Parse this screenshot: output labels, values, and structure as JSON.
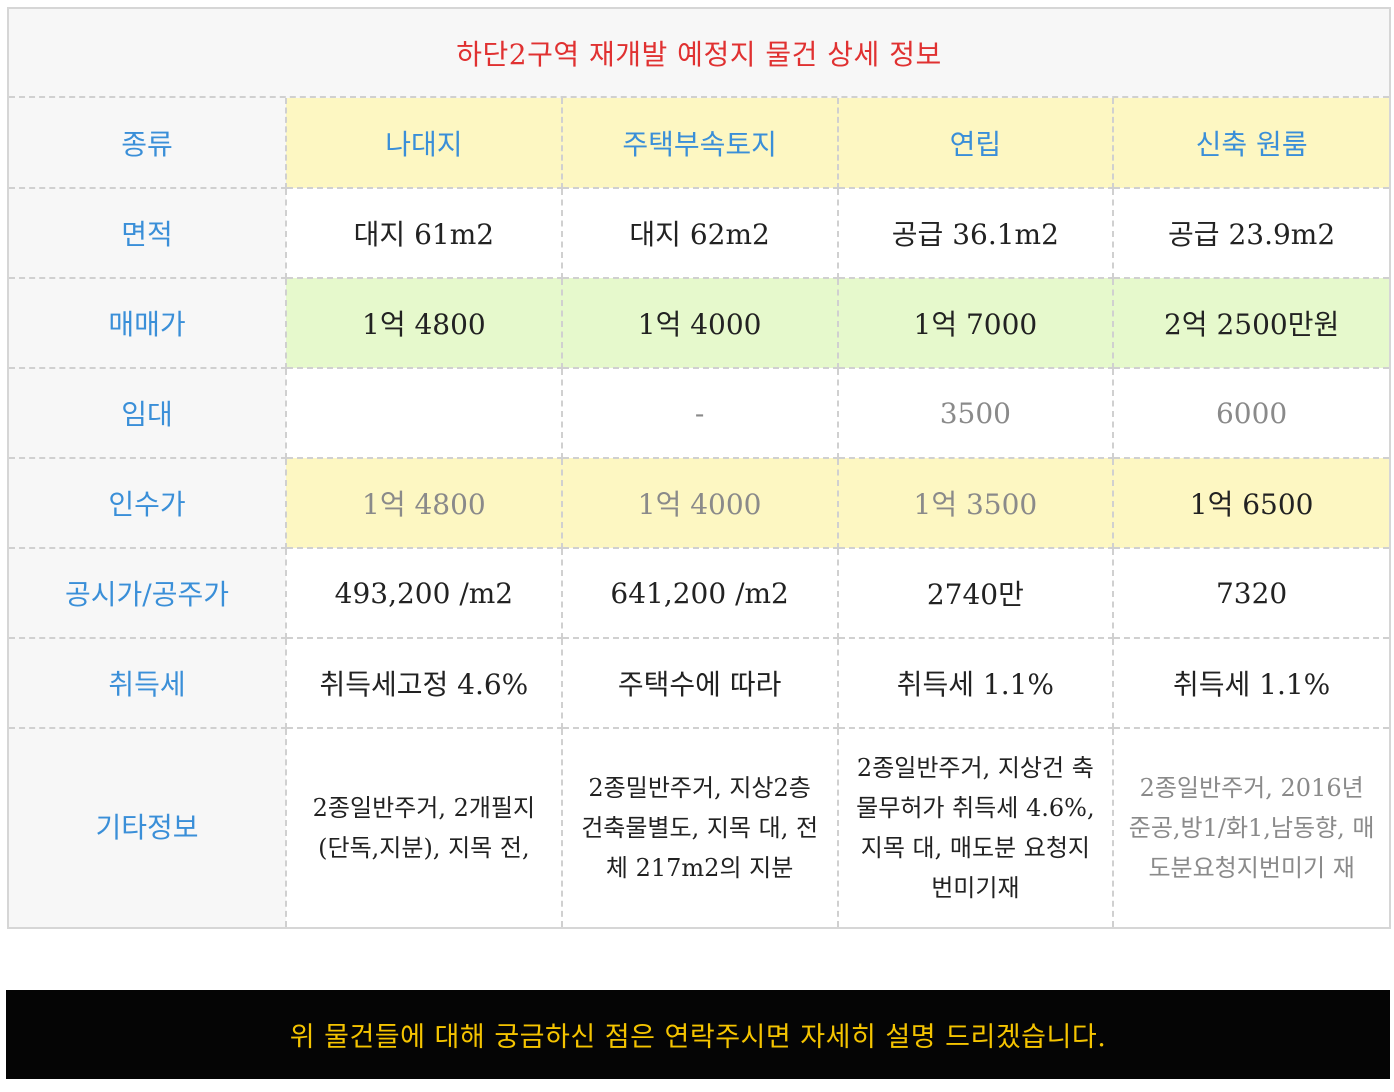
{
  "table": {
    "title": "하단2구역 재개발 예정지 물건 상세 정보",
    "columns": [
      "나대지",
      "주택부속토지",
      "연립",
      "신축 원룸"
    ],
    "rows": {
      "type": {
        "label": "종류"
      },
      "area": {
        "label": "면적",
        "values": [
          "대지 61m2",
          "대지 62m2",
          "공급 36.1m2",
          "공급 23.9m2"
        ]
      },
      "sale_price": {
        "label": "매매가",
        "values": [
          "1억 4800",
          "1억 4000",
          "1억 7000",
          "2억 2500만원"
        ]
      },
      "lease": {
        "label": "임대",
        "values": [
          "",
          "-",
          "3500",
          "6000"
        ]
      },
      "acquisition_price": {
        "label": "인수가",
        "values": [
          "1억 4800",
          "1억 4000",
          "1억 3500",
          "1억 6500"
        ]
      },
      "official_price": {
        "label": "공시가/공주가",
        "values": [
          "493,200 /m2",
          "641,200 /m2",
          "2740만",
          "7320"
        ]
      },
      "acquisition_tax": {
        "label": "취득세",
        "values": [
          "취득세고정 4.6%",
          "주택수에 따라",
          "취득세 1.1%",
          "취득세 1.1%"
        ]
      },
      "other_info": {
        "label": "기타정보",
        "values": [
          "2종일반주거, 2개필지 (단독,지분), 지목 전,",
          "2종밀반주거, 지상2층 건축물별도, 지목 대, 전체 217m2의 지분",
          "2종일반주거, 지상건 축물무허가 취득세 4.6%, 지목 대, 매도분 요청지번미기재",
          "2종일반주거, 2016년 준공,방1/화1,남동향, 매도분요청지번미기 재"
        ]
      }
    }
  },
  "banner": {
    "text": "위 물건들에 대해 궁금하신 점은 연락주시면 자세히 설명 드리겠습니다."
  },
  "colors": {
    "title": "#e03131",
    "row_label": "#3a8fd8",
    "highlight_yellow": "#fdf7c2",
    "highlight_green": "#e6f9cc",
    "banner_bg": "#050505",
    "banner_text": "#f5c400"
  }
}
